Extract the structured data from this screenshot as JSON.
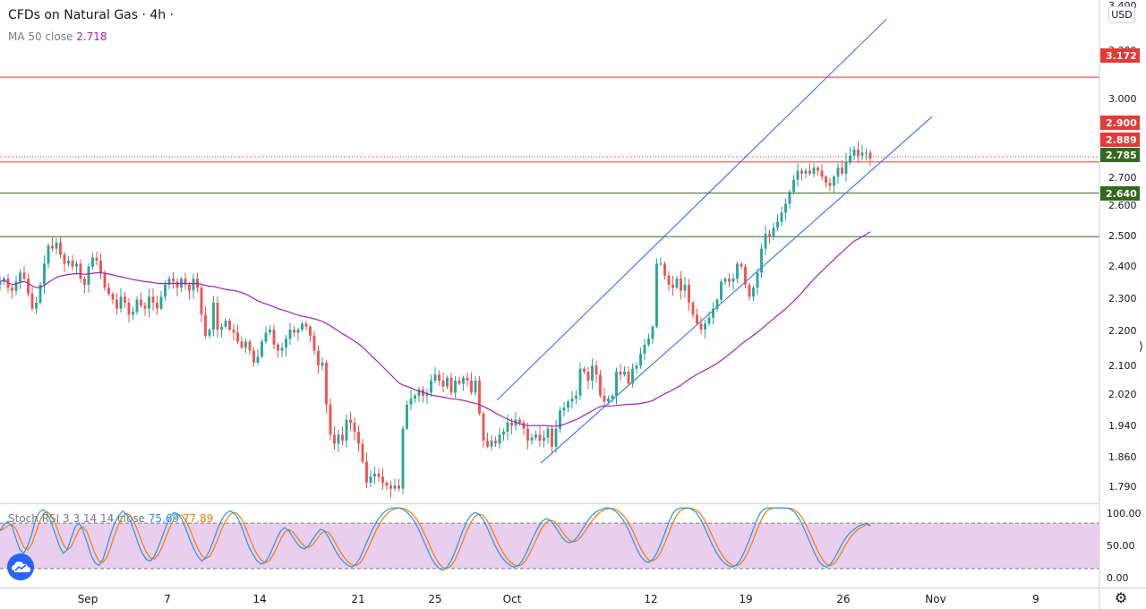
{
  "legend": {
    "symbol": "CFDs on Natural Gas · 4h ·",
    "ma_label": "MA 50 close",
    "ma_value": "2.718",
    "stoch_label": "Stoch RSI 3 3 14 14 close",
    "stoch_k": "75.69",
    "stoch_d": "77.89"
  },
  "currency": "USD",
  "colors": {
    "up": "#26a69a",
    "down": "#ef5350",
    "ma": "#9c27b0",
    "channel": "#2962ff",
    "resistance": "#e53935",
    "support": "#33691e",
    "stoch_k": "#2196f3",
    "stoch_d": "#f57c00",
    "stoch_band": "#e1bee7"
  },
  "icons": {
    "logo": "tradingview-logo-icon",
    "settings": "gear-icon",
    "handle": "drag-handle-icon"
  },
  "chart_data": [
    {
      "type": "candlestick",
      "timeframe": "4h",
      "x_axis": {
        "labels": [
          "Sep",
          "7",
          "14",
          "21",
          "25",
          "Oct",
          "12",
          "19",
          "26",
          "Nov",
          "9"
        ]
      },
      "y_axis": {
        "ticks": [
          "3.400",
          "3.300",
          "3.000",
          "2.700",
          "2.600",
          "2.500",
          "2.400",
          "2.300",
          "2.200",
          "2.100",
          "2.020",
          "1.940",
          "1.860",
          "1.790"
        ],
        "range": [
          1.76,
          3.42
        ]
      },
      "horizontal_lines": [
        {
          "value": 3.172,
          "label": "3.172",
          "color": "resistance"
        },
        {
          "value": 2.889,
          "label": "2.889",
          "color": "resistance"
        },
        {
          "value": 2.785,
          "label": "2.785",
          "color": "support"
        },
        {
          "value": 2.64,
          "label": "2.640",
          "color": "support"
        }
      ],
      "last_price": {
        "value": 2.9,
        "label": "2.900"
      },
      "channel": {
        "upper": [
          [
            0.0,
            2.095
          ],
          [
            1.0,
            3.365
          ]
        ],
        "lower": [
          [
            0.0,
            1.885
          ],
          [
            1.0,
            3.04
          ]
        ],
        "x_range_days": [
          1.0,
          2.0
        ]
      },
      "closes": [
        2.49,
        2.5,
        2.47,
        2.46,
        2.49,
        2.52,
        2.5,
        2.45,
        2.4,
        2.42,
        2.48,
        2.55,
        2.61,
        2.6,
        2.62,
        2.58,
        2.55,
        2.56,
        2.54,
        2.55,
        2.5,
        2.48,
        2.54,
        2.57,
        2.56,
        2.52,
        2.47,
        2.45,
        2.43,
        2.4,
        2.44,
        2.42,
        2.38,
        2.39,
        2.43,
        2.41,
        2.4,
        2.44,
        2.42,
        2.4,
        2.44,
        2.48,
        2.5,
        2.49,
        2.47,
        2.5,
        2.48,
        2.46,
        2.5,
        2.47,
        2.38,
        2.31,
        2.33,
        2.42,
        2.33,
        2.34,
        2.36,
        2.33,
        2.32,
        2.29,
        2.27,
        2.29,
        2.26,
        2.22,
        2.24,
        2.29,
        2.32,
        2.33,
        2.28,
        2.26,
        2.27,
        2.3,
        2.33,
        2.32,
        2.33,
        2.35,
        2.34,
        2.31,
        2.26,
        2.21,
        2.22,
        2.08,
        1.98,
        1.95,
        1.98,
        1.96,
        2.03,
        2.02,
        1.99,
        1.95,
        1.89,
        1.82,
        1.84,
        1.85,
        1.84,
        1.82,
        1.81,
        1.8,
        1.81,
        1.8,
        2.0,
        2.08,
        2.1,
        2.11,
        2.13,
        2.11,
        2.12,
        2.16,
        2.18,
        2.16,
        2.14,
        2.17,
        2.12,
        2.16,
        2.15,
        2.17,
        2.16,
        2.12,
        2.16,
        2.05,
        1.96,
        1.94,
        1.96,
        1.95,
        1.98,
        1.99,
        2.02,
        2.01,
        2.03,
        2.02,
        2.0,
        1.96,
        1.97,
        1.98,
        1.96,
        1.97,
        2.0,
        1.94,
        2.0,
        2.06,
        2.07,
        2.09,
        2.1,
        2.11,
        2.2,
        2.19,
        2.16,
        2.21,
        2.18,
        2.11,
        2.09,
        2.1,
        2.11,
        2.19,
        2.18,
        2.19,
        2.15,
        2.2,
        2.21,
        2.25,
        2.28,
        2.3,
        2.34,
        2.55,
        2.55,
        2.51,
        2.48,
        2.47,
        2.5,
        2.46,
        2.48,
        2.42,
        2.38,
        2.35,
        2.33,
        2.35,
        2.37,
        2.4,
        2.43,
        2.49,
        2.5,
        2.49,
        2.5,
        2.55,
        2.54,
        2.48,
        2.44,
        2.47,
        2.52,
        2.6,
        2.65,
        2.64,
        2.67,
        2.69,
        2.72,
        2.75,
        2.79,
        2.83,
        2.86,
        2.85,
        2.86,
        2.85,
        2.87,
        2.86,
        2.84,
        2.82,
        2.81,
        2.84,
        2.87,
        2.85,
        2.89,
        2.91,
        2.93,
        2.91,
        2.92,
        2.92,
        2.9
      ]
    },
    {
      "type": "line",
      "name": "MA 50 close",
      "note": "50-period simple moving average of the closes"
    },
    {
      "type": "line",
      "name": "Stoch RSI 3 3 14 14 close",
      "y_axis": {
        "ticks": [
          "100.00",
          "50.00",
          "0.00"
        ],
        "range": [
          -5,
          105
        ]
      },
      "band": [
        20,
        80
      ],
      "series": [
        {
          "name": "K",
          "last": 75.69
        },
        {
          "name": "D",
          "last": 77.89
        }
      ],
      "k_values": [
        70,
        78,
        82,
        76,
        60,
        45,
        40,
        50,
        65,
        85,
        95,
        98,
        92,
        80,
        65,
        50,
        40,
        45,
        60,
        75,
        80,
        70,
        55,
        38,
        28,
        24,
        32,
        48,
        66,
        80,
        90,
        96,
        92,
        82,
        68,
        52,
        40,
        32,
        30,
        36,
        48,
        62,
        76,
        88,
        94,
        92,
        85,
        72,
        58,
        46,
        36,
        30,
        34,
        44,
        58,
        72,
        84,
        92,
        96,
        94,
        88,
        76,
        62,
        48,
        38,
        30,
        26,
        28,
        36,
        48,
        60,
        70,
        74,
        70,
        62,
        54,
        48,
        46,
        50,
        58,
        66,
        72,
        70,
        62,
        52,
        42,
        34,
        28,
        24,
        22,
        26,
        34,
        46,
        58,
        70,
        80,
        88,
        94,
        98,
        100,
        100,
        100,
        98,
        94,
        88,
        80,
        70,
        58,
        46,
        34,
        26,
        20,
        18,
        22,
        30,
        42,
        56,
        70,
        82,
        90,
        94,
        92,
        86,
        76,
        64,
        52,
        42,
        34,
        28,
        24,
        22,
        24,
        30,
        40,
        52,
        64,
        74,
        82,
        86,
        84,
        78,
        70,
        62,
        56,
        54,
        56,
        62,
        70,
        78,
        86,
        92,
        96,
        98,
        100,
        100,
        98,
        94,
        88,
        80,
        70,
        58,
        46,
        36,
        30,
        28,
        32,
        40,
        52,
        66,
        80,
        92,
        98,
        100,
        100,
        100,
        98,
        94,
        86,
        76,
        64,
        52,
        42,
        34,
        28,
        24,
        22,
        24,
        30,
        40,
        52,
        66,
        80,
        92,
        98,
        100,
        100,
        100,
        100,
        100,
        100,
        98,
        94,
        86,
        76,
        64,
        52,
        40,
        30,
        24,
        22,
        26,
        34,
        44,
        54,
        62,
        68,
        72,
        76,
        78,
        80,
        76
      ]
    }
  ]
}
